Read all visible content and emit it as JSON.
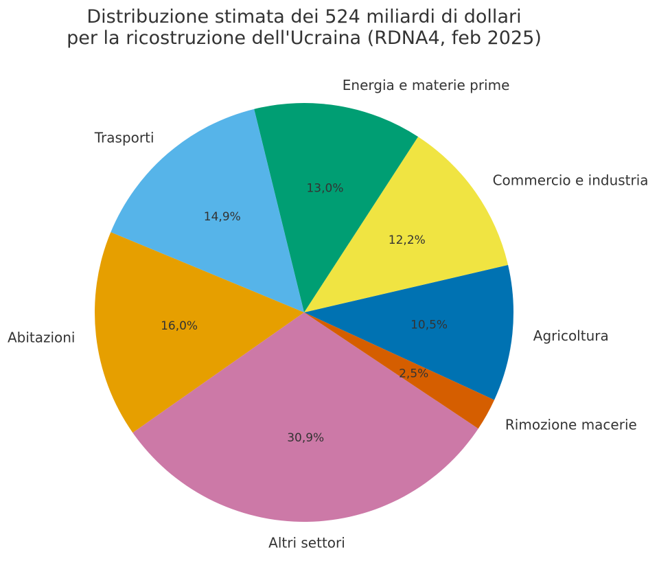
{
  "chart_data": {
    "type": "pie",
    "title_lines": [
      "Distribuzione stimata dei 524 miliardi di dollari",
      "per la ricostruzione dell'Ucraina (RDNA4, feb 2025)"
    ],
    "slices": [
      {
        "label": "Agricoltura",
        "value": 10.5,
        "pct_label": "10,5%",
        "color": "#0072B2"
      },
      {
        "label": "Commercio e industria",
        "value": 12.2,
        "pct_label": "12,2%",
        "color": "#F0E442"
      },
      {
        "label": "Energia e materie prime",
        "value": 13.0,
        "pct_label": "13,0%",
        "color": "#009E73"
      },
      {
        "label": "Trasporti",
        "value": 14.9,
        "pct_label": "14,9%",
        "color": "#56B4E9"
      },
      {
        "label": "Abitazioni",
        "value": 16.0,
        "pct_label": "16,0%",
        "color": "#E69F00"
      },
      {
        "label": "Altri settori",
        "value": 30.9,
        "pct_label": "30,9%",
        "color": "#CC79A7"
      },
      {
        "label": "Rimozione macerie",
        "value": 2.5,
        "pct_label": "2,5%",
        "color": "#D55E00"
      }
    ]
  }
}
